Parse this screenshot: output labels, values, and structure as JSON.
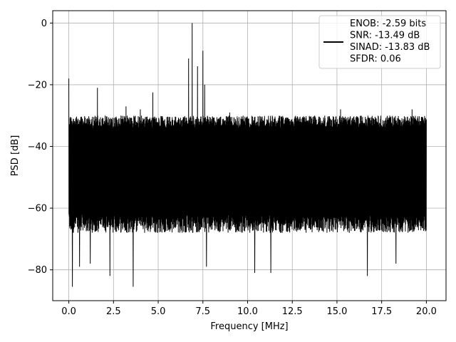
{
  "chart_data": {
    "type": "line",
    "title": "",
    "xlabel": "Frequency [MHz]",
    "ylabel": "PSD [dB]",
    "xlim": [
      -0.9,
      21.1
    ],
    "ylim": [
      -90,
      4
    ],
    "x_ticks": [
      0.0,
      2.5,
      5.0,
      7.5,
      10.0,
      12.5,
      15.0,
      17.5,
      20.0
    ],
    "x_tick_labels": [
      "0.0",
      "2.5",
      "5.0",
      "7.5",
      "10.0",
      "12.5",
      "15.0",
      "17.5",
      "20.0"
    ],
    "y_ticks": [
      0,
      -20,
      -40,
      -60,
      -80
    ],
    "y_tick_labels": [
      "0",
      "−20",
      "−40",
      "−60",
      "−80"
    ],
    "grid": true,
    "legend_position": "top-right",
    "series": [
      {
        "name": "ENOB: -2.59 bits\nSNR: -13.49 dB\nSINAD: -13.83 dB\nSFDR: 0.06",
        "color": "#000000",
        "noise_floor_db": [
          -36,
          -32
        ],
        "noise_spread_db": [
          -68,
          -30
        ],
        "x_range": [
          0.0,
          20.0
        ],
        "peaks": [
          {
            "x": 0.0,
            "y": -18
          },
          {
            "x": 0.5,
            "y": -34
          },
          {
            "x": 1.2,
            "y": -26.5
          },
          {
            "x": 1.6,
            "y": -21
          },
          {
            "x": 3.2,
            "y": -27
          },
          {
            "x": 4.0,
            "y": -28
          },
          {
            "x": 4.7,
            "y": -22.5
          },
          {
            "x": 6.7,
            "y": -11.5
          },
          {
            "x": 6.9,
            "y": 0
          },
          {
            "x": 7.2,
            "y": -14
          },
          {
            "x": 7.5,
            "y": -9
          },
          {
            "x": 7.6,
            "y": -20
          },
          {
            "x": 9.0,
            "y": -29
          },
          {
            "x": 15.2,
            "y": -28
          },
          {
            "x": 19.2,
            "y": -28
          }
        ],
        "dips": [
          {
            "x": 0.2,
            "y": -85.5
          },
          {
            "x": 3.6,
            "y": -85.5
          },
          {
            "x": 2.3,
            "y": -82
          },
          {
            "x": 16.7,
            "y": -82
          },
          {
            "x": 11.3,
            "y": -81
          },
          {
            "x": 10.4,
            "y": -81
          },
          {
            "x": 7.7,
            "y": -79
          },
          {
            "x": 0.6,
            "y": -79
          },
          {
            "x": 18.3,
            "y": -78
          },
          {
            "x": 1.2,
            "y": -78
          }
        ]
      }
    ],
    "legend": {
      "lines": [
        "ENOB: -2.59 bits",
        "SNR: -13.49 dB",
        "SINAD: -13.83 dB",
        "SFDR: 0.06"
      ]
    }
  }
}
